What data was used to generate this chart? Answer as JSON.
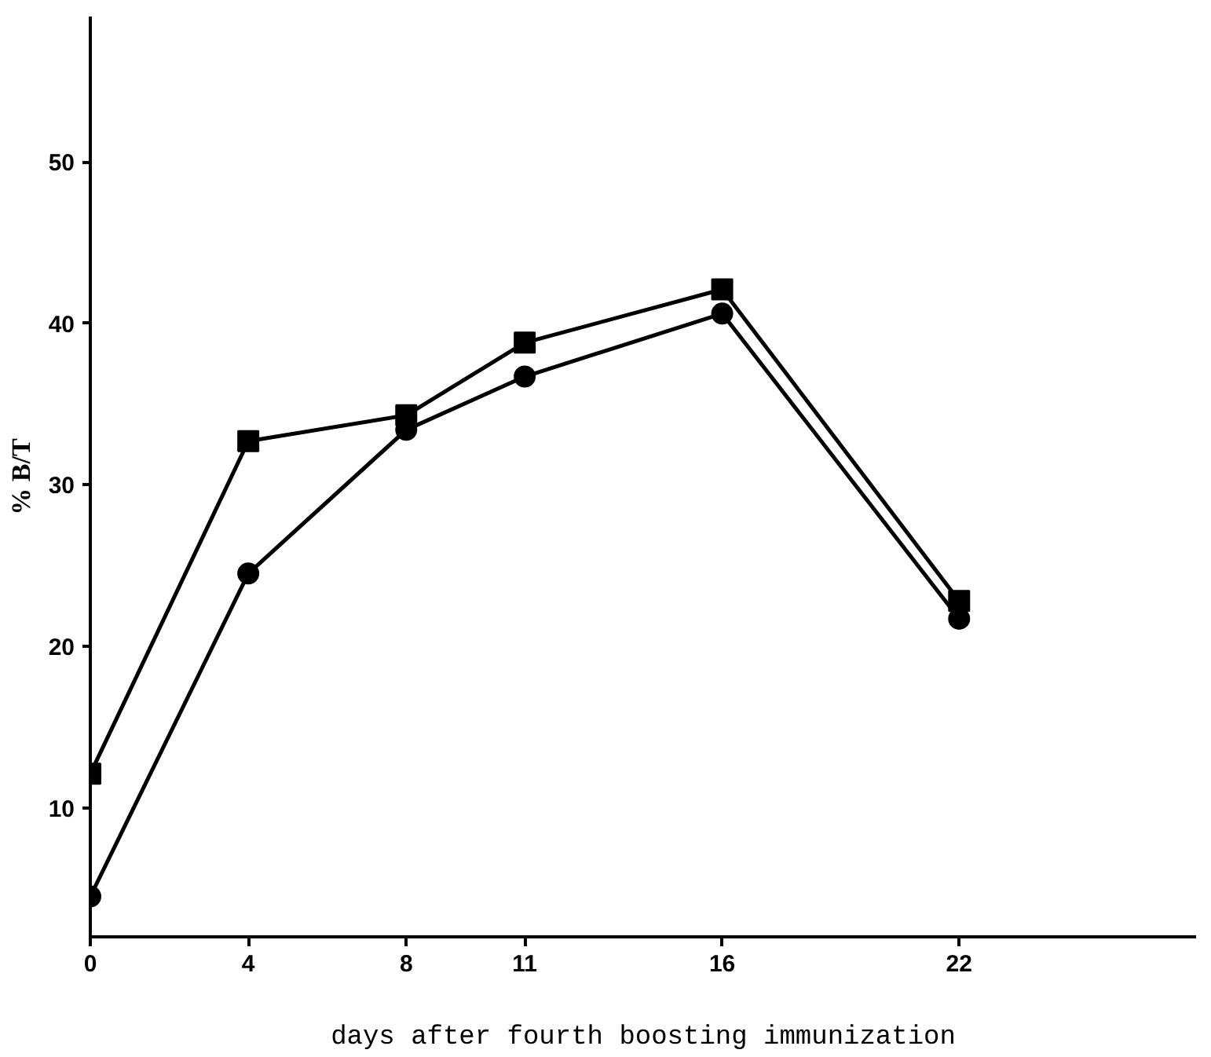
{
  "chart_data": {
    "type": "line",
    "xlabel": "days after fourth boosting immunization",
    "ylabel": "% B/T",
    "x": [
      0,
      4,
      8,
      11,
      16,
      22
    ],
    "series": [
      {
        "color": "#000000",
        "marker": "square",
        "values": [
          12.1,
          32.7,
          34.3,
          38.8,
          42.1,
          22.8
        ]
      },
      {
        "color": "#000000",
        "marker": "circle",
        "values": [
          4.5,
          24.5,
          33.4,
          36.7,
          40.6,
          21.7
        ]
      }
    ],
    "xlim": [
      0,
      28
    ],
    "xticks": [
      0,
      4,
      8,
      11,
      16,
      22
    ],
    "ylim": [
      2,
      59
    ],
    "yticks": [
      10,
      20,
      30,
      40,
      50
    ],
    "grid": false,
    "line_style": "solid"
  }
}
